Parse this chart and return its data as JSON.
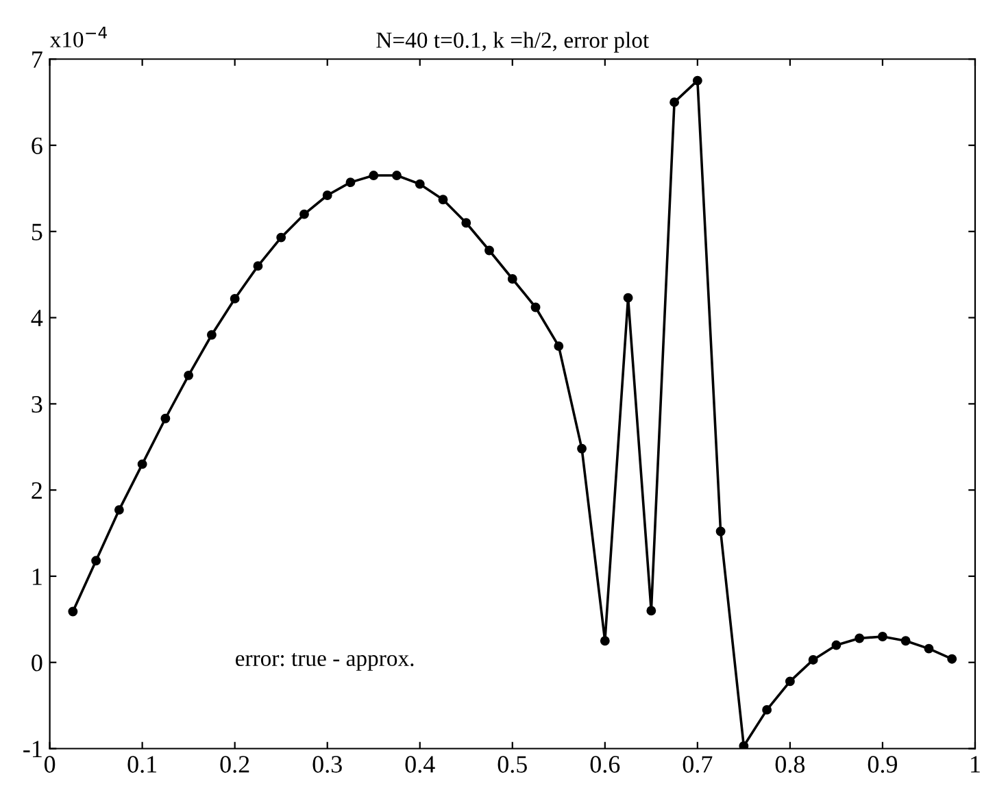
{
  "chart_data": {
    "type": "line",
    "title": "N=40 t=0.1, k =h/2, error plot",
    "ylabel": "x10$^{−4}$",
    "x": [
      0.025,
      0.05,
      0.075,
      0.1,
      0.125,
      0.15,
      0.175,
      0.2,
      0.225,
      0.25,
      0.275,
      0.3,
      0.325,
      0.35,
      0.375,
      0.4,
      0.425,
      0.45,
      0.475,
      0.5,
      0.525,
      0.55,
      0.575,
      0.6,
      0.625,
      0.65,
      0.675,
      0.7,
      0.725,
      0.75,
      0.775,
      0.8,
      0.825,
      0.85,
      0.875,
      0.9,
      0.925,
      0.95,
      0.975
    ],
    "series": [
      {
        "color": "#000000",
        "values": [
          0.59,
          1.18,
          1.77,
          2.3,
          2.83,
          3.33,
          3.8,
          4.22,
          4.6,
          4.93,
          5.2,
          5.42,
          5.57,
          5.65,
          5.65,
          5.55,
          5.37,
          5.1,
          4.78,
          4.45,
          4.12,
          3.67,
          2.48,
          0.25,
          4.23,
          0.6,
          6.5,
          6.75,
          1.52,
          -0.97,
          -0.55,
          -0.22,
          0.03,
          0.2,
          0.28,
          0.3,
          0.25,
          0.16,
          0.04
        ]
      }
    ],
    "xlim": [
      0,
      1
    ],
    "xticks": [
      0,
      0.1,
      0.2,
      0.3,
      0.4,
      0.5,
      0.6,
      0.7,
      0.8,
      0.9,
      1
    ],
    "ylim": [
      -1,
      7
    ],
    "yticks": [
      -1,
      0,
      1,
      2,
      3,
      4,
      5,
      6,
      7
    ],
    "annotations": [
      "error: true - approx."
    ],
    "marker": "circle",
    "line_style": "solid",
    "grid": false,
    "legend": false
  }
}
